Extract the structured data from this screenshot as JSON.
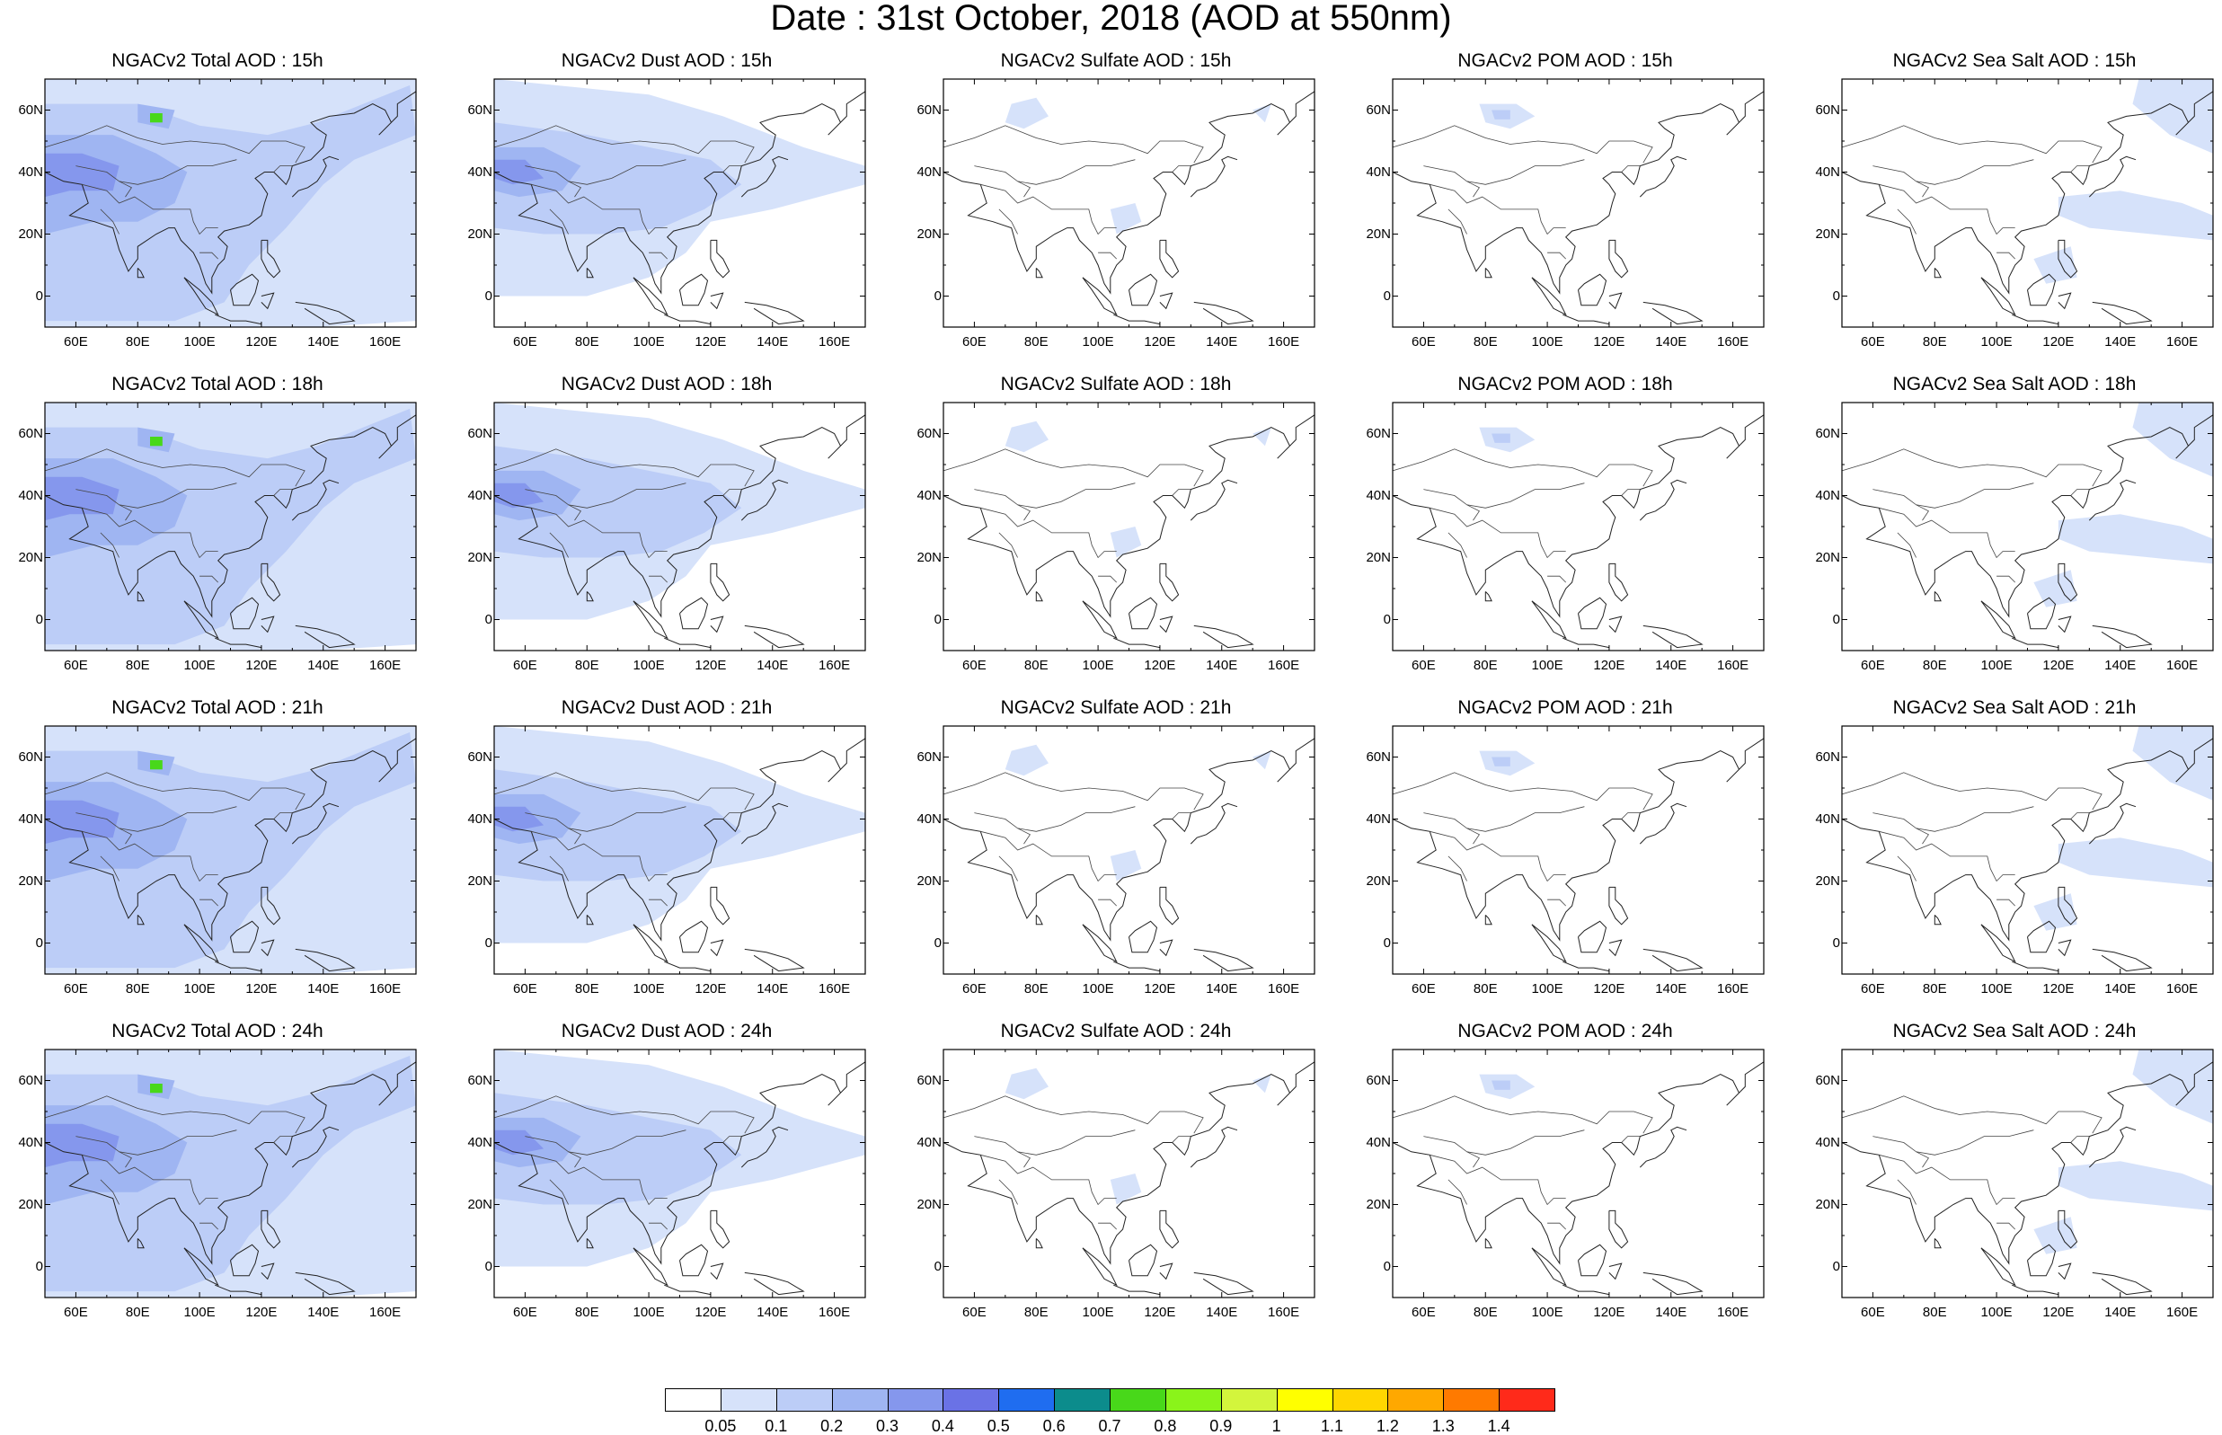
{
  "title": "Date : 31st October, 2018 (AOD at 550nm)",
  "chart_data": {
    "type": "heatmap",
    "title": "Date : 31st October, 2018 (AOD at 550nm)",
    "xticks": [
      "60E",
      "80E",
      "100E",
      "120E",
      "140E",
      "160E"
    ],
    "yticks": [
      "60N",
      "40N",
      "20N",
      "0"
    ],
    "xlim": [
      50,
      170
    ],
    "ylim": [
      -10,
      70
    ],
    "species": [
      "Total",
      "Dust",
      "Sulfate",
      "POM",
      "Sea Salt"
    ],
    "hours": [
      "15h",
      "18h",
      "21h",
      "24h"
    ],
    "panels": [
      [
        "NGACv2 Total AOD : 15h",
        "NGACv2 Dust AOD : 15h",
        "NGACv2 Sulfate AOD : 15h",
        "NGACv2 POM AOD : 15h",
        "NGACv2 Sea Salt AOD : 15h"
      ],
      [
        "NGACv2 Total AOD : 18h",
        "NGACv2 Dust AOD : 18h",
        "NGACv2 Sulfate AOD : 18h",
        "NGACv2 POM AOD : 18h",
        "NGACv2 Sea Salt AOD : 18h"
      ],
      [
        "NGACv2 Total AOD : 21h",
        "NGACv2 Dust AOD : 21h",
        "NGACv2 Sulfate AOD : 21h",
        "NGACv2 POM AOD : 21h",
        "NGACv2 Sea Salt AOD : 21h"
      ],
      [
        "NGACv2 Total AOD : 24h",
        "NGACv2 Dust AOD : 24h",
        "NGACv2 Sulfate AOD : 24h",
        "NGACv2 POM AOD : 24h",
        "NGACv2 Sea Salt  AOD : 24h"
      ]
    ],
    "colorbar": {
      "levels": [
        "0.05",
        "0.1",
        "0.2",
        "0.3",
        "0.4",
        "0.5",
        "0.6",
        "0.7",
        "0.8",
        "0.9",
        "1",
        "1.1",
        "1.2",
        "1.3",
        "1.4"
      ],
      "colors": [
        "#ffffff",
        "#d6e2fa",
        "#bccdf7",
        "#9fb5f2",
        "#8597ed",
        "#6a72e6",
        "#1f6df0",
        "#0c8c8c",
        "#48d81a",
        "#8af41a",
        "#d3f53c",
        "#ffff00",
        "#ffd600",
        "#ffa800",
        "#ff7a00",
        "#ff2a1a"
      ]
    }
  }
}
